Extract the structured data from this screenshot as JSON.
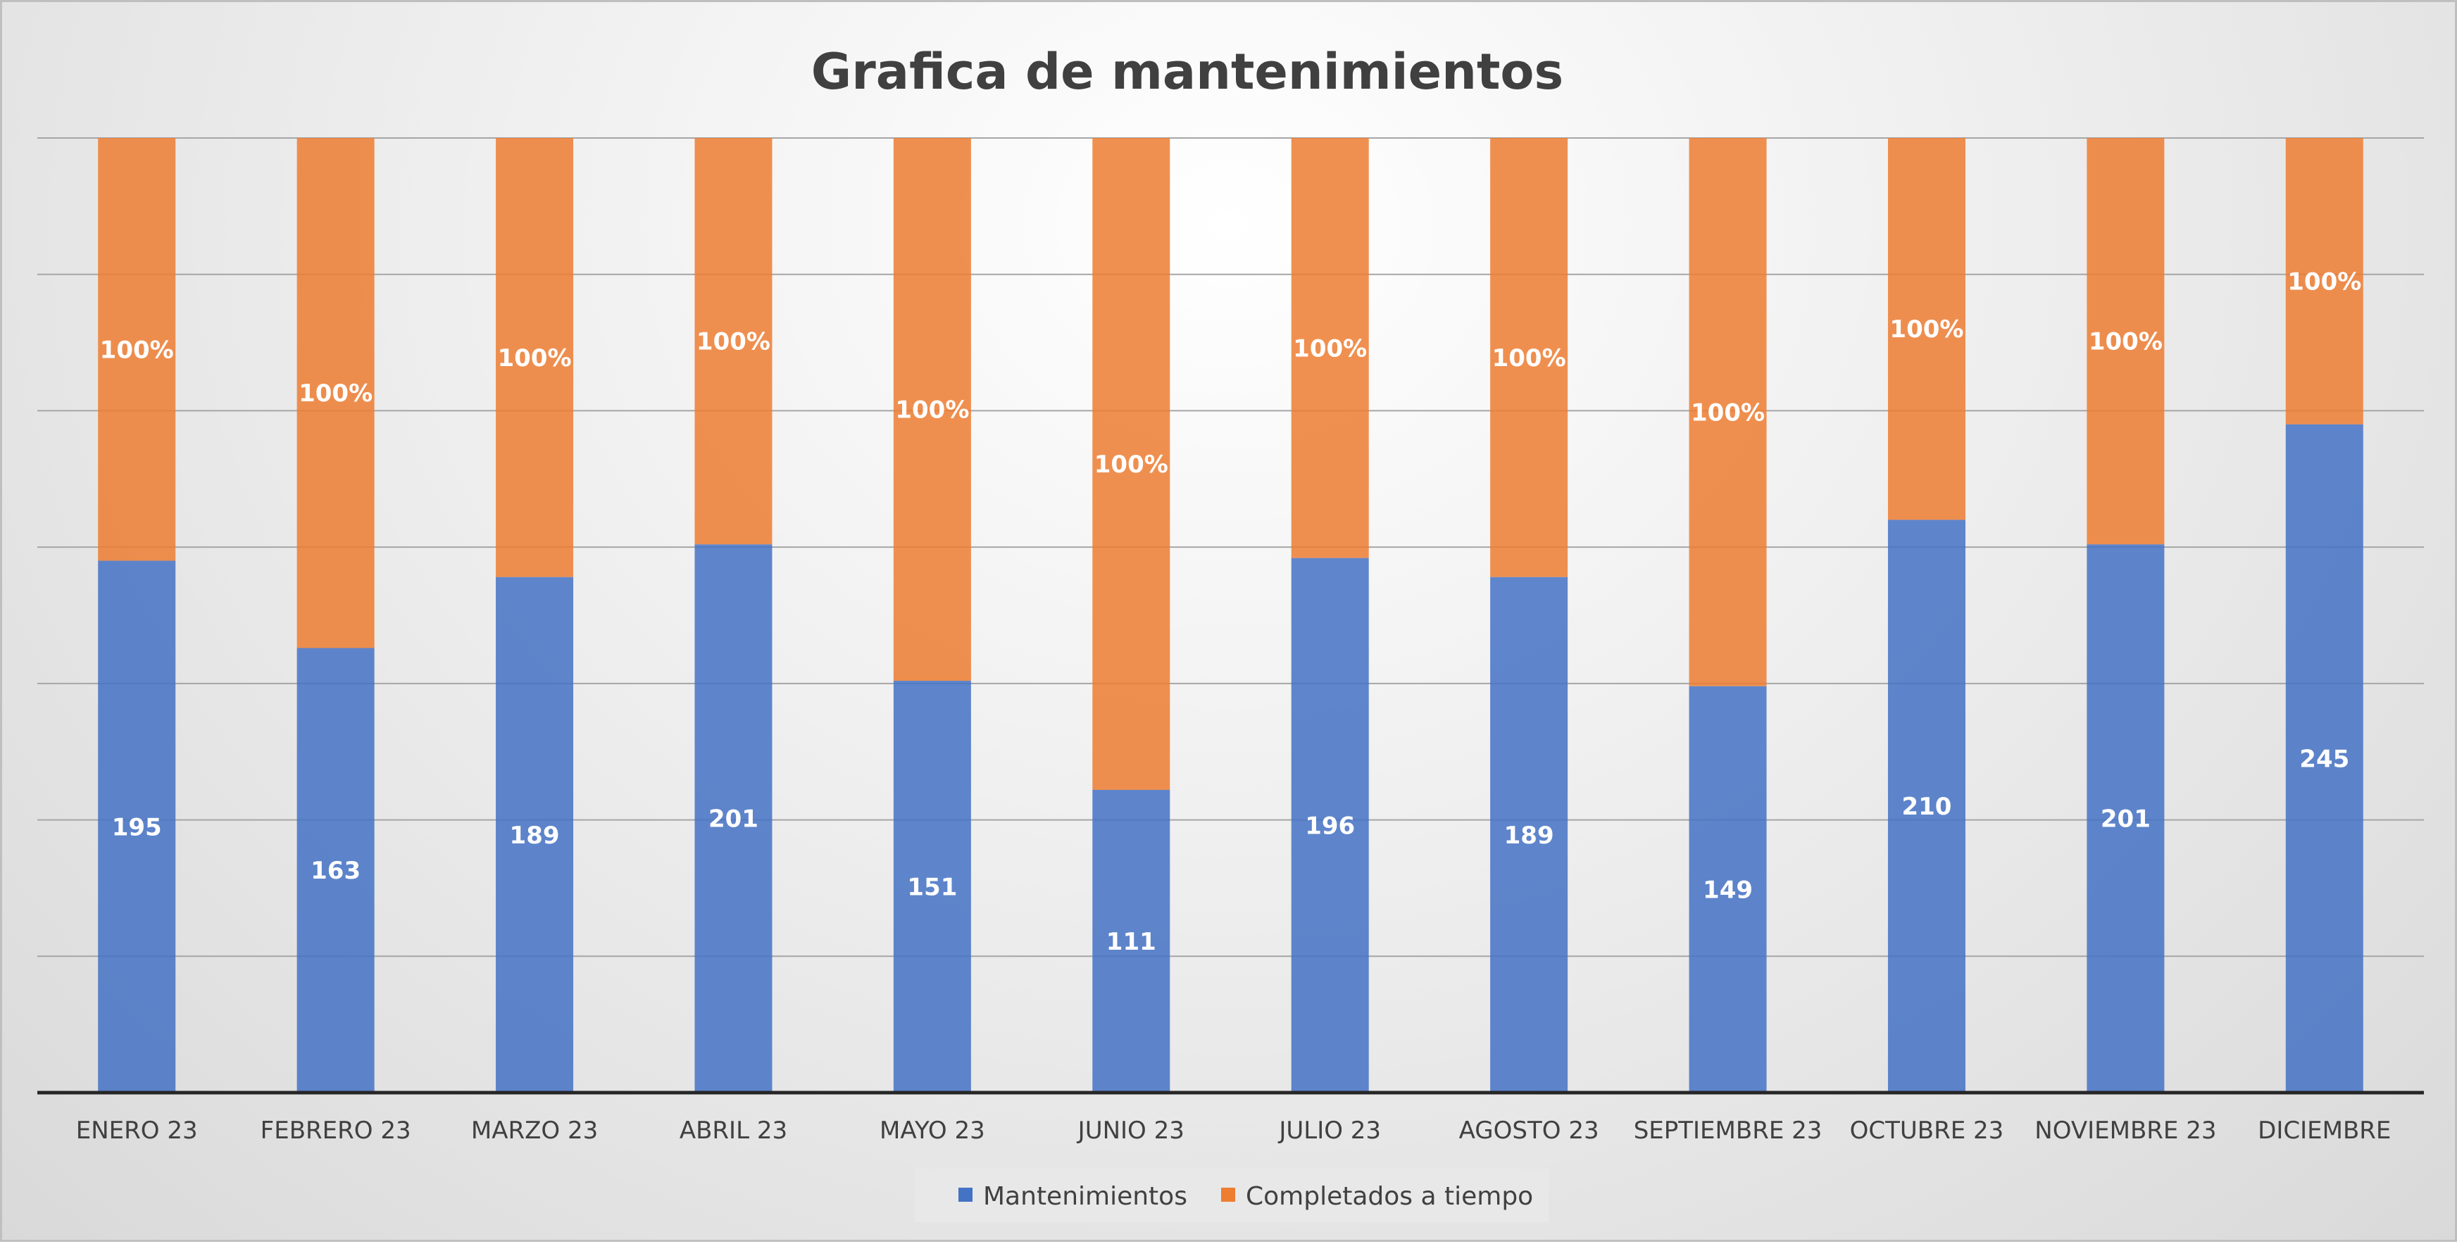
{
  "chart_data": {
    "type": "bar",
    "stacked": "percent",
    "title": "Grafica de mantenimientos",
    "categories": [
      "ENERO 23",
      "FEBRERO 23",
      "MARZO 23",
      "ABRIL 23",
      "MAYO 23",
      "JUNIO 23",
      "JULIO 23",
      "AGOSTO 23",
      "SEPTIEMBRE 23",
      "OCTUBRE 23",
      "NOVIEMBRE 23",
      "DICIEMBRE"
    ],
    "series": [
      {
        "name": "Mantenimientos",
        "color": "#4472C4",
        "values": [
          195,
          163,
          189,
          201,
          151,
          111,
          196,
          189,
          149,
          210,
          201,
          245
        ],
        "labels": [
          "195",
          "163",
          "189",
          "201",
          "151",
          "111",
          "196",
          "189",
          "149",
          "210",
          "201",
          "245"
        ]
      },
      {
        "name": "Completados a tiempo",
        "color": "#ED7D31",
        "values": [
          1,
          1,
          1,
          1,
          1,
          1,
          1,
          1,
          1,
          1,
          1,
          1
        ],
        "labels": [
          "100%",
          "100%",
          "100%",
          "100%",
          "100%",
          "100%",
          "100%",
          "100%",
          "100%",
          "100%",
          "100%",
          "100%"
        ]
      }
    ],
    "ylim": [
      0,
      350
    ],
    "grid": true,
    "legend_position": "bottom"
  }
}
